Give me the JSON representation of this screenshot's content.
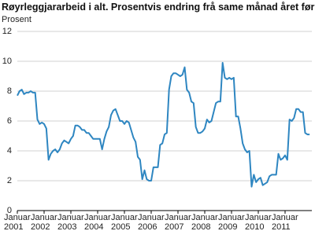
{
  "chart_data": {
    "type": "line",
    "title": "Røyrleggjararbeid i alt. Prosentvis endring frå same månad året før",
    "y_label": "Prosent",
    "categories": [
      "Januar 2001",
      null,
      null,
      null,
      null,
      null,
      null,
      null,
      null,
      null,
      null,
      null,
      "Januar 2002",
      null,
      null,
      null,
      null,
      null,
      null,
      null,
      null,
      null,
      null,
      null,
      "Januar 2003",
      null,
      null,
      null,
      null,
      null,
      null,
      null,
      null,
      null,
      null,
      null,
      "Januar 2004",
      null,
      null,
      null,
      null,
      null,
      null,
      null,
      null,
      null,
      null,
      null,
      "Januar 2005",
      null,
      null,
      null,
      null,
      null,
      null,
      null,
      null,
      null,
      null,
      null,
      "Januar 2006",
      null,
      null,
      null,
      null,
      null,
      null,
      null,
      null,
      null,
      null,
      null,
      "Januar 2007",
      null,
      null,
      null,
      null,
      null,
      null,
      null,
      null,
      null,
      null,
      null,
      "Januar 2008",
      null,
      null,
      null,
      null,
      null,
      null,
      null,
      null,
      null,
      null,
      null,
      "Januar 2009",
      null,
      null,
      null,
      null,
      null,
      null,
      null,
      null,
      null,
      null,
      null,
      "Januar 2010",
      null,
      null,
      null,
      null,
      null,
      null,
      null,
      null,
      null,
      null,
      null,
      "Januar 2011",
      null,
      null,
      null,
      null,
      null,
      null,
      null,
      null,
      null,
      null,
      null
    ],
    "values": [
      7.7,
      8.0,
      8.1,
      7.8,
      7.9,
      7.9,
      8.0,
      7.9,
      7.9,
      6.1,
      5.8,
      5.9,
      5.8,
      5.5,
      3.4,
      3.8,
      4.0,
      4.1,
      3.9,
      4.1,
      4.5,
      4.7,
      4.6,
      4.5,
      4.8,
      5.0,
      5.7,
      5.7,
      5.6,
      5.4,
      5.4,
      5.2,
      5.2,
      5.0,
      4.8,
      4.8,
      4.8,
      4.8,
      4.1,
      4.8,
      5.3,
      5.6,
      6.4,
      6.7,
      6.8,
      6.4,
      6.0,
      6.0,
      5.8,
      6.0,
      5.9,
      5.4,
      4.9,
      4.6,
      3.6,
      3.4,
      2.1,
      2.7,
      2.1,
      2.0,
      2.0,
      2.9,
      2.9,
      2.9,
      4.4,
      4.5,
      5.1,
      5.2,
      8.1,
      9.0,
      9.2,
      9.2,
      9.1,
      9.0,
      9.1,
      9.6,
      8.1,
      7.9,
      7.3,
      7.2,
      5.6,
      5.2,
      5.2,
      5.3,
      5.5,
      6.1,
      5.9,
      6.0,
      6.6,
      7.2,
      7.3,
      7.3,
      9.9,
      8.9,
      8.8,
      8.9,
      8.8,
      8.9,
      6.3,
      6.3,
      5.5,
      4.5,
      4.1,
      3.9,
      4.0,
      1.6,
      2.4,
      1.9,
      2.1,
      2.2,
      1.7,
      1.8,
      1.9,
      2.3,
      2.4,
      2.4,
      2.4,
      3.8,
      3.4,
      3.5,
      3.7,
      3.4,
      6.1,
      6.0,
      6.2,
      6.8,
      6.8,
      6.6,
      6.6,
      5.2,
      5.1,
      5.1
    ],
    "color": "#2e86c1",
    "ylim": [
      0,
      12
    ],
    "yticks": [
      0,
      2,
      4,
      6,
      8,
      10,
      12
    ],
    "grid": true
  }
}
